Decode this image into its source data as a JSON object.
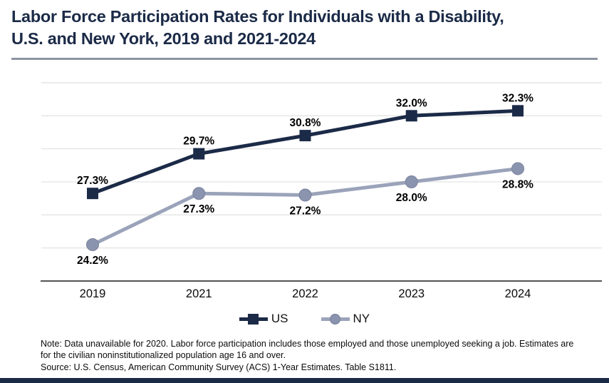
{
  "header": {
    "title_line1": "Labor Force Participation Rates for Individuals with a Disability,",
    "title_line2": "U.S. and New York, 2019 and 2021-2024"
  },
  "chart_data": {
    "type": "line",
    "title": "Labor Force Participation Rates for Individuals with a Disability, U.S. and New York, 2019 and 2021-2024",
    "categories": [
      "2019",
      "2021",
      "2022",
      "2023",
      "2024"
    ],
    "series": [
      {
        "name": "US",
        "values": [
          27.3,
          29.7,
          30.8,
          32.0,
          32.3
        ],
        "labels": [
          "27.3%",
          "29.7%",
          "30.8%",
          "32.0%",
          "32.3%"
        ],
        "color": "#1b2a47",
        "marker_color": "#1b2a47",
        "marker": "square",
        "label_position": "above"
      },
      {
        "name": "NY",
        "values": [
          24.2,
          27.3,
          27.2,
          28.0,
          28.8
        ],
        "labels": [
          "24.2%",
          "27.3%",
          "27.2%",
          "28.0%",
          "28.8%"
        ],
        "color": "#9aa3b9",
        "marker_color": "#8b94ae",
        "marker": "circle",
        "label_position": "below"
      }
    ],
    "xlabel": "",
    "ylabel": "",
    "ylim": [
      22,
      35
    ],
    "gridline_step": 2,
    "grid": true,
    "legend_position": "bottom"
  },
  "footnotes": {
    "note": "Note: Data unavailable for 2020. Labor force participation includes those employed and those unemployed seeking a job. Estimates are for the civilian noninstitutionalized population age 16 and over.",
    "source": "Source: U.S. Census, American Community Survey (ACS) 1-Year Estimates. Table S1811."
  },
  "colors": {
    "accent_navy": "#1b2a47",
    "ny_line": "#9aa3b9",
    "ny_marker": "#8b94ae",
    "gridline": "#e4e4e4",
    "axis": "#1a1a1a",
    "divider_gray": "#8c93a1"
  }
}
